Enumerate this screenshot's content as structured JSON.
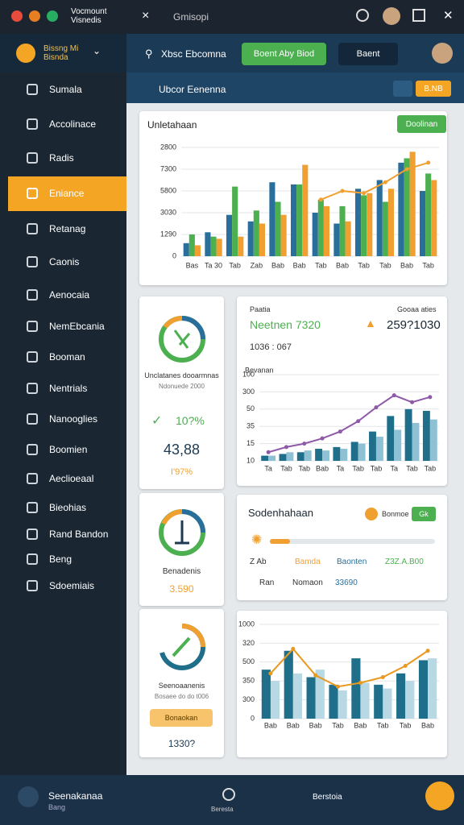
{
  "window": {
    "title": "Vocmount Visnedis",
    "tab": "Gmisopi"
  },
  "sidebar": {
    "brand": [
      "Bissng Mi",
      "Bisnda"
    ],
    "items": [
      "Sumala",
      "Accolinace",
      "Radis",
      "Eniance",
      "Retanag",
      "Caonis",
      "Aenocaia",
      "NemEbcania",
      "Booman",
      "Nentrials",
      "Nanooglies",
      "Boomien",
      "Aeclioeaal",
      "Bieohias",
      "Rand Bandon",
      "Beng",
      "Sdoemiais"
    ],
    "active": 3
  },
  "topbar": {
    "search": "Xbsc Ebcomna",
    "button": "Boent Aby Biod",
    "button2": "Baent"
  },
  "breadcrumb": {
    "title": "Ubcor Eenenna",
    "badge": "B.NB"
  },
  "main_card": {
    "title": "Unletahaan",
    "button": "Doolinan"
  },
  "gauge1": {
    "caption": "Unclatanes dooarmnas",
    "sub": "Ndonuede 2000",
    "pct": "10?%",
    "value": "43,88",
    "foot": "I'97%"
  },
  "stats": {
    "left_label": "Paatia",
    "left_value": "Neetnen 7320",
    "right_label": "Gooaa aties",
    "right_value": "259?1030",
    "meta": "1036 : 067"
  },
  "summary": {
    "title": "Sodenhahaan",
    "tag": "Bonmoe",
    "badge": "Gk",
    "legend": [
      "Z Ab",
      "Bamda",
      "Baonten",
      "Z3Z.A.B00",
      "Ran",
      "Nomaon",
      "33690"
    ]
  },
  "gauge2": {
    "caption": "Benadenis",
    "value": "3.590"
  },
  "gauge3": {
    "caption": "Seenoaanenis",
    "sub": "Bosaee do do t006",
    "button": "Bonaokan",
    "value": "1330?"
  },
  "bottombar": {
    "title": "Seenakanaa",
    "sub": "Bang",
    "center": "Beresta",
    "right": "Berstoia"
  },
  "chart_data": [
    {
      "type": "bar",
      "categories": [
        "Bas",
        "Ta 30",
        "Tab",
        "Zab",
        "Bab",
        "Bab",
        "Tab",
        "Bab",
        "Tab",
        "Tab",
        "Bab",
        "Tab"
      ],
      "ylim": [
        0,
        5
      ],
      "yticks": [
        {
          "value": 0,
          "label": "0"
        },
        {
          "value": 1,
          "label": "1290"
        },
        {
          "value": 2,
          "label": "3030"
        },
        {
          "value": 3,
          "label": "5800"
        },
        {
          "value": 4,
          "label": "7300"
        },
        {
          "value": 5,
          "label": "2800"
        }
      ],
      "grid": true,
      "series": [
        {
          "type": "bar",
          "color": "#2a6f9b",
          "values": [
            0.6,
            1.1,
            1.9,
            1.6,
            3.4,
            3.3,
            2.0,
            1.5,
            3.1,
            3.5,
            4.3,
            3.0
          ]
        },
        {
          "type": "bar",
          "color": "#4caf50",
          "values": [
            1.0,
            0.9,
            3.2,
            2.1,
            2.5,
            3.3,
            2.6,
            2.3,
            2.8,
            2.5,
            4.5,
            3.8
          ]
        },
        {
          "type": "bar",
          "color": "#f0a030",
          "values": [
            0.5,
            0.8,
            0.9,
            1.5,
            1.9,
            4.2,
            2.3,
            1.6,
            2.9,
            3.1,
            4.8,
            3.5
          ]
        },
        {
          "type": "line",
          "color": "#f0a030",
          "values": [
            null,
            null,
            null,
            null,
            null,
            null,
            2.6,
            3.0,
            2.9,
            3.4,
            4.0,
            4.3
          ]
        }
      ]
    },
    {
      "type": "bar",
      "title": "Bevanan",
      "categories": [
        "Ta",
        "Tab",
        "Tab",
        "Bab",
        "Ta",
        "Tab",
        "Tab",
        "Ta",
        "Tab",
        "Tab"
      ],
      "ylim": [
        0,
        5
      ],
      "yticks": [
        {
          "value": 0,
          "label": "10"
        },
        {
          "value": 1,
          "label": "15"
        },
        {
          "value": 2,
          "label": "35"
        },
        {
          "value": 3,
          "label": "50"
        },
        {
          "value": 4,
          "label": "300"
        },
        {
          "value": 5,
          "label": "100"
        }
      ],
      "grid": true,
      "series": [
        {
          "type": "bar",
          "color": "#1f6f8b",
          "values": [
            0.3,
            0.4,
            0.5,
            0.7,
            0.8,
            1.1,
            1.7,
            2.6,
            3.0,
            2.9
          ]
        },
        {
          "type": "bar",
          "color": "#8fc1d4",
          "values": [
            0.3,
            0.5,
            0.6,
            0.6,
            0.7,
            1.0,
            1.4,
            1.8,
            2.2,
            2.4
          ]
        },
        {
          "type": "line",
          "color": "#8e5aa8",
          "values": [
            0.5,
            0.8,
            1.0,
            1.3,
            1.7,
            2.3,
            3.1,
            3.8,
            3.4,
            3.7
          ]
        }
      ]
    },
    {
      "type": "bar",
      "categories": [
        "Bab",
        "Bab",
        "Bab",
        "Tab",
        "Bab",
        "Tab",
        "Tab",
        "Bab"
      ],
      "ylim": [
        0,
        5
      ],
      "yticks": [
        {
          "value": 0,
          "label": "0"
        },
        {
          "value": 1,
          "label": "300"
        },
        {
          "value": 2,
          "label": "350"
        },
        {
          "value": 3,
          "label": "500"
        },
        {
          "value": 4,
          "label": "320"
        },
        {
          "value": 5,
          "label": "1000"
        }
      ],
      "grid": true,
      "series": [
        {
          "type": "bar",
          "color": "#1f6f8b",
          "values": [
            2.6,
            3.6,
            2.2,
            1.8,
            3.2,
            1.8,
            2.4,
            3.1
          ]
        },
        {
          "type": "bar",
          "color": "#b8d8e4",
          "values": [
            2.0,
            2.4,
            2.6,
            1.5,
            1.9,
            1.6,
            2.0,
            3.2
          ]
        },
        {
          "type": "line",
          "color": "#e89a20",
          "values": [
            2.4,
            3.7,
            2.3,
            1.7,
            1.9,
            2.2,
            2.8,
            3.6
          ]
        }
      ]
    }
  ]
}
